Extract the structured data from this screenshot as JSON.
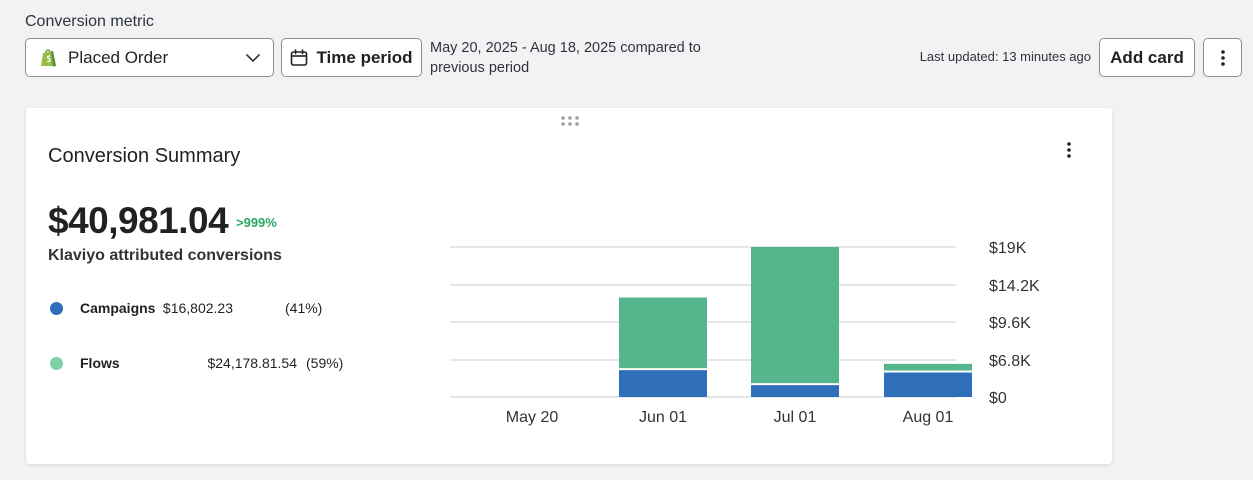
{
  "header": {
    "metric_label": "Conversion metric",
    "metric_value": "Placed Order",
    "time_button_label": "Time period",
    "date_range": "May 20, 2025 - Aug 18, 2025 compared to previous period",
    "last_updated": "Last updated: 13 minutes ago",
    "add_card_label": "Add card"
  },
  "card": {
    "title": "Conversion Summary",
    "total": "$40,981.04",
    "change": ">999%",
    "total_label": "Klaviyo attributed conversions",
    "legend": [
      {
        "name": "Campaigns",
        "amount": "$16,802.23",
        "pct": "(41%)",
        "color": "#2f6fb9"
      },
      {
        "name": "Flows",
        "amount": "$24,178.81.54",
        "pct": "(59%)",
        "color": "#55b58c"
      }
    ]
  },
  "chart_data": {
    "type": "bar",
    "stacked": true,
    "categories": [
      "May 20",
      "Jun 01",
      "Jul 01",
      "Aug 01"
    ],
    "series": [
      {
        "name": "Campaigns",
        "color": "#2f6fb9",
        "values": [
          0,
          3400,
          1500,
          3100
        ]
      },
      {
        "name": "Flows",
        "color": "#55b58c",
        "values": [
          0,
          9200,
          17500,
          1100
        ]
      }
    ],
    "y_ticks": [
      "$19K",
      "$14.2K",
      "$9.6K",
      "$6.8K",
      "$0"
    ],
    "ylim": [
      0,
      19000
    ],
    "grid": true,
    "y_axis_side": "right"
  }
}
